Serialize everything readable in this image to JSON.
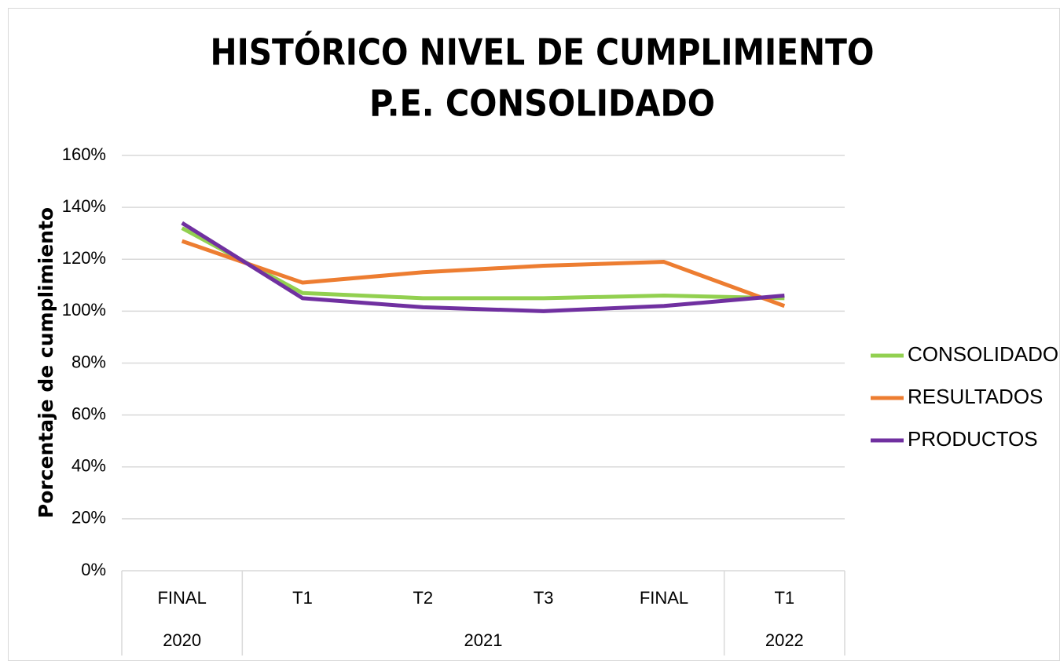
{
  "chart_data": {
    "type": "line",
    "title": [
      "HISTÓRICO NIVEL DE CUMPLIMIENTO",
      "P.E. CONSOLIDADO"
    ],
    "y_label": "Porcentaje de cumplimiento",
    "groups": [
      {
        "name": "2020",
        "categories": [
          "FINAL"
        ]
      },
      {
        "name": "2021",
        "categories": [
          "T1",
          "T2",
          "T3",
          "FINAL"
        ]
      },
      {
        "name": "2022",
        "categories": [
          "T1"
        ]
      }
    ],
    "series": [
      {
        "name": "CONSOLIDADO",
        "color": "#92d050",
        "values": [
          132,
          107,
          105,
          105,
          106,
          105
        ]
      },
      {
        "name": "RESULTADOS",
        "color": "#ed7d31",
        "values": [
          127,
          111,
          115,
          117.5,
          119,
          102
        ]
      },
      {
        "name": "PRODUCTOS",
        "color": "#7030a0",
        "values": [
          134,
          105,
          101.5,
          100,
          102,
          106
        ]
      }
    ],
    "ylim": [
      0,
      160
    ],
    "yticks": [
      {
        "value": 0,
        "label": "0%"
      },
      {
        "value": 20,
        "label": "20%"
      },
      {
        "value": 40,
        "label": "40%"
      },
      {
        "value": 60,
        "label": "60%"
      },
      {
        "value": 80,
        "label": "80%"
      },
      {
        "value": 100,
        "label": "100%"
      },
      {
        "value": 120,
        "label": "120%"
      },
      {
        "value": 140,
        "label": "140%"
      },
      {
        "value": 160,
        "label": "160%"
      }
    ],
    "grid": true,
    "legend": "right"
  }
}
